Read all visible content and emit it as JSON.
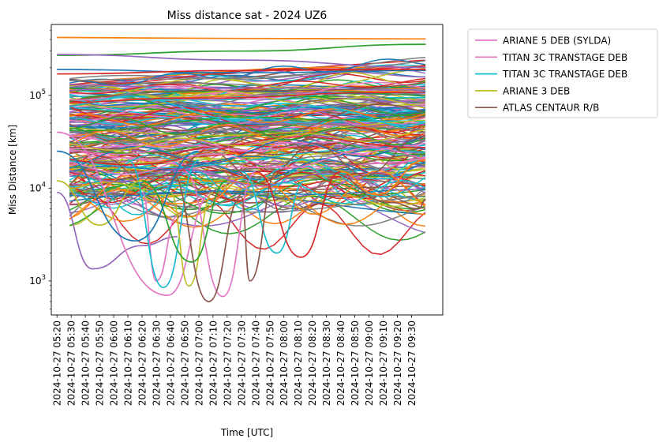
{
  "chart_data": {
    "type": "line",
    "title": "Miss distance sat - 2024 UZ6",
    "xlabel": "Time [UTC]",
    "ylabel": "Miss Distance [km]",
    "yscale": "log",
    "ylim": [
      430,
      580000
    ],
    "xlim": [
      "2024-10-27 05:16",
      "2024-10-27 09:52"
    ],
    "x_ticks": [
      "2024-10-27 05:20",
      "2024-10-27 05:30",
      "2024-10-27 05:40",
      "2024-10-27 05:50",
      "2024-10-27 06:00",
      "2024-10-27 06:10",
      "2024-10-27 06:20",
      "2024-10-27 06:30",
      "2024-10-27 06:40",
      "2024-10-27 06:50",
      "2024-10-27 07:00",
      "2024-10-27 07:10",
      "2024-10-27 07:20",
      "2024-10-27 07:30",
      "2024-10-27 07:40",
      "2024-10-27 07:50",
      "2024-10-27 08:00",
      "2024-10-27 08:10",
      "2024-10-27 08:20",
      "2024-10-27 08:30",
      "2024-10-27 08:40",
      "2024-10-27 08:50",
      "2024-10-27 09:00",
      "2024-10-27 09:10",
      "2024-10-27 09:20",
      "2024-10-27 09:30"
    ],
    "y_tick_labels": [
      "10^3",
      "10^4",
      "10^5"
    ],
    "y_tick_values": [
      1000,
      10000,
      100000
    ],
    "grid": false,
    "legend": {
      "placement": "outside-upper-right",
      "entries": [
        {
          "name": "ARIANE 5 DEB (SYLDA)",
          "color": "#e377c2"
        },
        {
          "name": "TITAN 3C TRANSTAGE DEB",
          "color": "#e377c2"
        },
        {
          "name": "TITAN 3C TRANSTAGE DEB",
          "color": "#17becf"
        },
        {
          "name": "ARIANE 3 DEB",
          "color": "#bcbd22"
        },
        {
          "name": "ATLAS CENTAUR R/B",
          "color": "#8c564b"
        }
      ]
    },
    "series": [
      {
        "color": "#ff7f0e",
        "x": [
          "2024-10-27 05:20",
          "2024-10-27 07:30",
          "2024-10-27 09:40"
        ],
        "y": [
          420000,
          410000,
          405000
        ]
      },
      {
        "color": "#2ca02c",
        "x": [
          "2024-10-27 05:20",
          "2024-10-27 07:30",
          "2024-10-27 09:40"
        ],
        "y": [
          270000,
          300000,
          355000
        ]
      },
      {
        "color": "#9467bd",
        "x": [
          "2024-10-27 05:20",
          "2024-10-27 07:30",
          "2024-10-27 09:40"
        ],
        "y": [
          275000,
          240000,
          200000
        ]
      },
      {
        "color": "#1f77b4",
        "x": [
          "2024-10-27 05:20",
          "2024-10-27 07:30",
          "2024-10-27 09:40"
        ],
        "y": [
          190000,
          175000,
          185000
        ]
      },
      {
        "color": "#d62728",
        "x": [
          "2024-10-27 05:20",
          "2024-10-27 07:30",
          "2024-10-27 09:40"
        ],
        "y": [
          170000,
          185000,
          190000
        ]
      },
      {
        "color": "#9467bd",
        "x": [
          "2024-10-27 05:20",
          "2024-10-27 05:45",
          "2024-10-27 06:20",
          "2024-10-27 06:45"
        ],
        "y": [
          9000,
          1350,
          2400,
          3000
        ]
      },
      {
        "color": "#e377c2",
        "x": [
          "2024-10-27 05:20",
          "2024-10-27 06:38",
          "2024-10-27 07:10"
        ],
        "y": [
          40000,
          700,
          9000
        ]
      },
      {
        "color": "#e377c2",
        "x": [
          "2024-10-27 06:20",
          "2024-10-27 06:30",
          "2024-10-27 06:45"
        ],
        "y": [
          9000,
          1000,
          5000
        ]
      },
      {
        "color": "#e377c2",
        "x": [
          "2024-10-27 06:50",
          "2024-10-27 07:17",
          "2024-10-27 07:40"
        ],
        "y": [
          15000,
          680,
          15000
        ]
      },
      {
        "color": "#17becf",
        "x": [
          "2024-10-27 06:10",
          "2024-10-27 06:35",
          "2024-10-27 07:00"
        ],
        "y": [
          20000,
          850,
          20000
        ]
      },
      {
        "color": "#17becf",
        "x": [
          "2024-10-27 07:30",
          "2024-10-27 07:55",
          "2024-10-27 08:15"
        ],
        "y": [
          15000,
          2000,
          12000
        ]
      },
      {
        "color": "#bcbd22",
        "x": [
          "2024-10-27 06:40",
          "2024-10-27 06:53",
          "2024-10-27 07:10"
        ],
        "y": [
          9000,
          880,
          9000
        ]
      },
      {
        "color": "#bcbd22",
        "x": [
          "2024-10-27 05:20",
          "2024-10-27 05:50",
          "2024-10-27 06:20"
        ],
        "y": [
          12000,
          4000,
          12000
        ]
      },
      {
        "color": "#8c564b",
        "x": [
          "2024-10-27 06:40",
          "2024-10-27 07:07",
          "2024-10-27 07:30",
          "2024-10-27 07:36",
          "2024-10-27 07:55"
        ],
        "y": [
          15000,
          600,
          8000,
          1000,
          15000
        ]
      },
      {
        "color": "#8c564b",
        "x": [
          "2024-10-27 08:30",
          "2024-10-27 09:15",
          "2024-10-27 09:35",
          "2024-10-27 09:40"
        ],
        "y": [
          15000,
          7000,
          6000,
          7500
        ]
      },
      {
        "color": "#d62728",
        "x": [
          "2024-10-27 07:40",
          "2024-10-27 08:12",
          "2024-10-27 08:40"
        ],
        "y": [
          15000,
          1800,
          15000
        ]
      },
      {
        "color": "#2ca02c",
        "x": [
          "2024-10-27 06:20",
          "2024-10-27 06:55",
          "2024-10-27 07:20"
        ],
        "y": [
          12000,
          1600,
          12000
        ]
      },
      {
        "color": "#1f77b4",
        "x": [
          "2024-10-27 05:20",
          "2024-10-27 06:15",
          "2024-10-27 07:00"
        ],
        "y": [
          25000,
          2700,
          25000
        ]
      },
      {
        "color": "#ff7f0e",
        "x": [
          "2024-10-27 08:40",
          "2024-10-27 09:05",
          "2024-10-27 09:40"
        ],
        "y": [
          15000,
          8500,
          20000
        ]
      }
    ]
  }
}
